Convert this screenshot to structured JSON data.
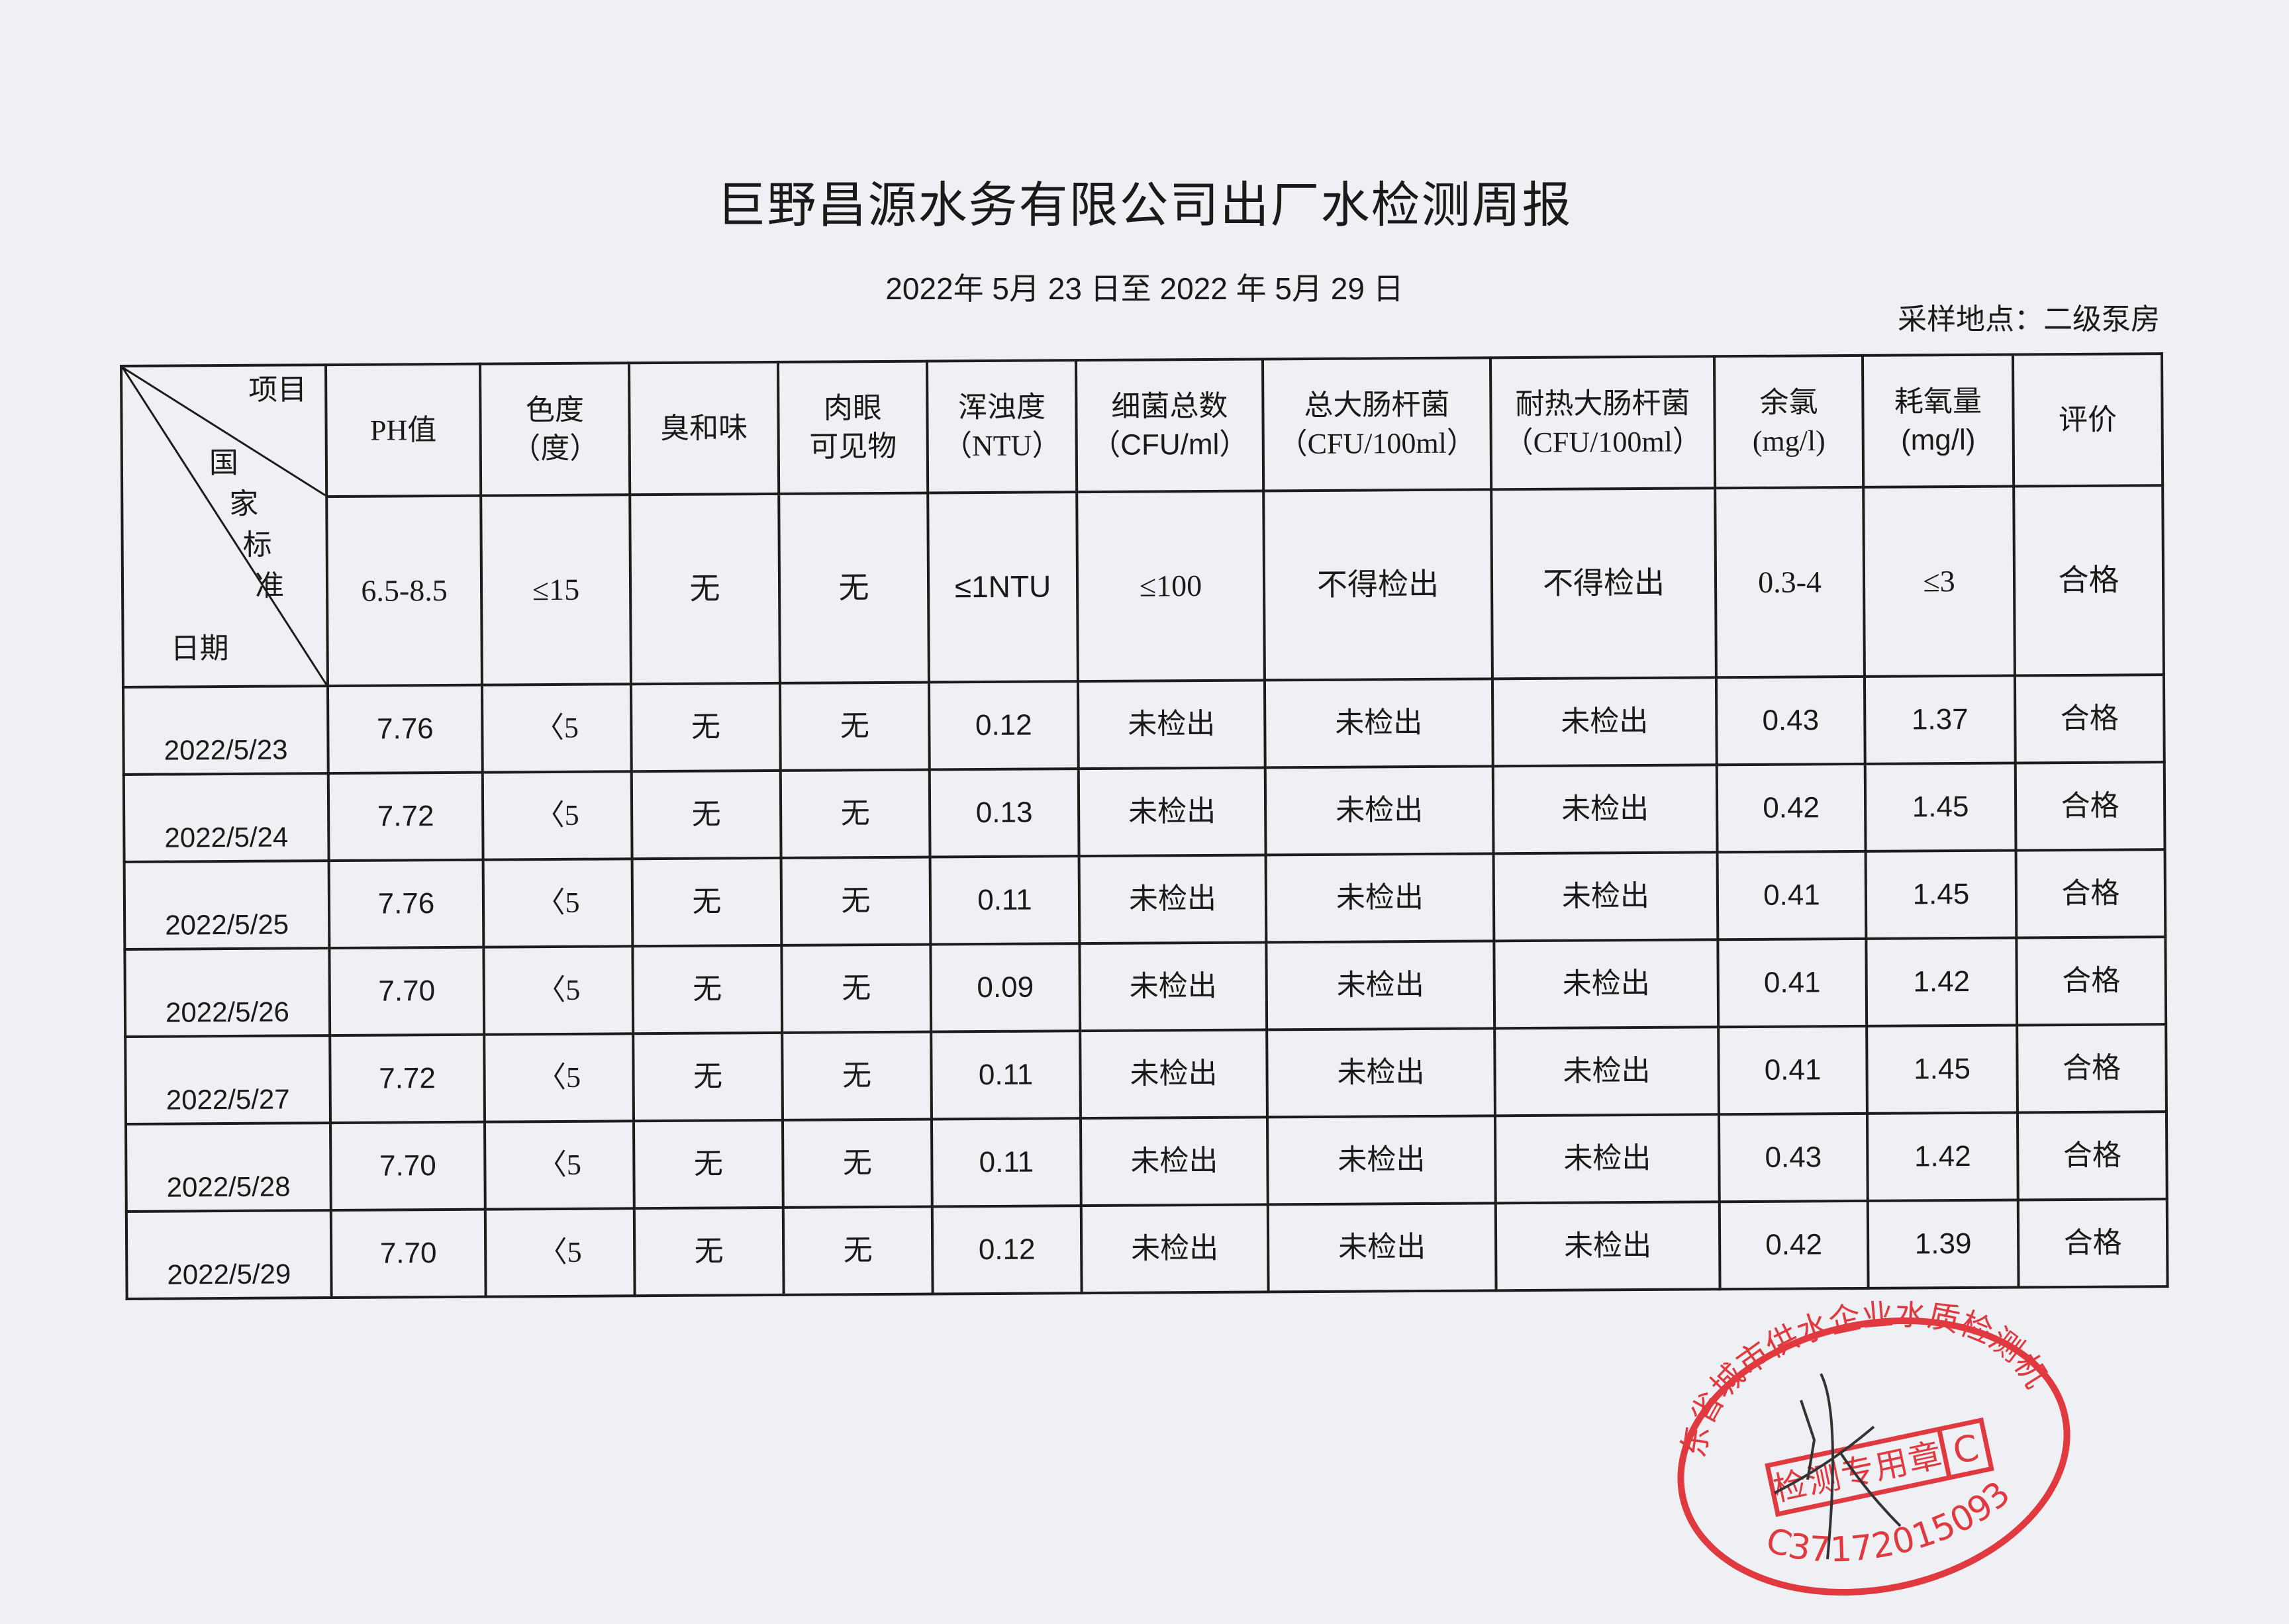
{
  "title": "巨野昌源水务有限公司出厂水检测周报",
  "date_range": "2022年 5月 23 日至  2022  年  5月 29 日",
  "sampling_site": "采样地点：二级泵房",
  "corner": {
    "item": "项目",
    "standard": [
      "国",
      "家",
      "标",
      "准"
    ],
    "date": "日期"
  },
  "columns": [
    {
      "name": "PH值",
      "unit": "",
      "standard": "6.5-8.5"
    },
    {
      "name": "色度",
      "unit": "（度）",
      "standard": "≤15"
    },
    {
      "name": "臭和味",
      "unit": "",
      "standard": "无"
    },
    {
      "name": "肉眼",
      "unit": "可见物",
      "standard": "无"
    },
    {
      "name": "浑浊度",
      "unit": "（NTU）",
      "standard": "≤1NTU"
    },
    {
      "name": "细菌总数",
      "unit": "（CFU/ml）",
      "standard": "≤100"
    },
    {
      "name": "总大肠杆菌",
      "unit": "（CFU/100ml）",
      "standard": "不得检出"
    },
    {
      "name": "耐热大肠杆菌",
      "unit": "（CFU/100ml）",
      "standard": "不得检出"
    },
    {
      "name": "余氯",
      "unit": "(mg/l)",
      "standard": "0.3-4"
    },
    {
      "name": "耗氧量",
      "unit": "(mg/l)",
      "standard": "≤3"
    },
    {
      "name": "评价",
      "unit": "",
      "standard": "合格"
    }
  ],
  "rows": [
    [
      "2022/5/23",
      "7.76",
      "〈5",
      "无",
      "无",
      "0.12",
      "未检出",
      "未检出",
      "未检出",
      "0.43",
      "1.37",
      "合格"
    ],
    [
      "2022/5/24",
      "7.72",
      "〈5",
      "无",
      "无",
      "0.13",
      "未检出",
      "未检出",
      "未检出",
      "0.42",
      "1.45",
      "合格"
    ],
    [
      "2022/5/25",
      "7.76",
      "〈5",
      "无",
      "无",
      "0.11",
      "未检出",
      "未检出",
      "未检出",
      "0.41",
      "1.45",
      "合格"
    ],
    [
      "2022/5/26",
      "7.70",
      "〈5",
      "无",
      "无",
      "0.09",
      "未检出",
      "未检出",
      "未检出",
      "0.41",
      "1.42",
      "合格"
    ],
    [
      "2022/5/27",
      "7.72",
      "〈5",
      "无",
      "无",
      "0.11",
      "未检出",
      "未检出",
      "未检出",
      "0.41",
      "1.45",
      "合格"
    ],
    [
      "2022/5/28",
      "7.70",
      "〈5",
      "无",
      "无",
      "0.11",
      "未检出",
      "未检出",
      "未检出",
      "0.43",
      "1.42",
      "合格"
    ],
    [
      "2022/5/29",
      "7.70",
      "〈5",
      "无",
      "无",
      "0.12",
      "未检出",
      "未检出",
      "未检出",
      "0.42",
      "1.39",
      "合格"
    ]
  ],
  "stamp": {
    "org": "山东省城市供水企业水质检测机构",
    "label": "检测专用章",
    "grade": "C",
    "code": "C37172015093",
    "color": "#e0393f"
  }
}
